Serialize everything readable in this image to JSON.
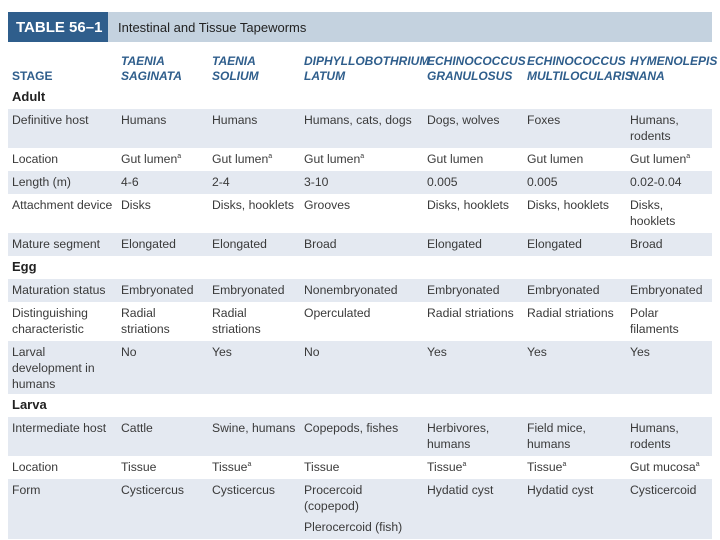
{
  "title": {
    "number": "TABLE 56–1",
    "text": "Intestinal and Tissue Tapeworms"
  },
  "columns": {
    "stage": "STAGE",
    "species": [
      [
        "TAENIA",
        "SAGINATA"
      ],
      [
        "TAENIA",
        "SOLIUM"
      ],
      [
        "DIPHYLLOBOTHRIUM",
        "LATUM"
      ],
      [
        "ECHINOCOCCUS",
        "GRANULOSUS"
      ],
      [
        "ECHINOCOCCUS",
        "MULTILOCULARIS"
      ],
      [
        "HYMENOLEPIS",
        "NANA"
      ]
    ]
  },
  "footnote_mark": "a",
  "sections": [
    {
      "name": "Adult",
      "rows": [
        {
          "label": "Definitive host",
          "cells": [
            "Humans",
            "Humans",
            "Humans, cats, dogs",
            "Dogs, wolves",
            "Foxes",
            "Humans, rodents"
          ]
        },
        {
          "label": "Location",
          "cells": [
            "Gut lumen",
            "Gut lumen",
            "Gut lumen",
            "Gut lumen",
            "Gut lumen",
            "Gut lumen"
          ]
        },
        {
          "label": "Length (m)",
          "cells": [
            "4-6",
            "2-4",
            "3-10",
            "0.005",
            "0.005",
            "0.02-0.04"
          ]
        },
        {
          "label": "Attachment device",
          "cells": [
            "Disks",
            "Disks, hooklets",
            "Grooves",
            "Disks, hooklets",
            "Disks, hooklets",
            "Disks, hooklets"
          ]
        },
        {
          "label": "Mature segment",
          "cells": [
            "Elongated",
            "Elongated",
            "Broad",
            "Elongated",
            "Elongated",
            "Broad"
          ]
        }
      ]
    },
    {
      "name": "Egg",
      "rows": [
        {
          "label": "Maturation status",
          "cells": [
            "Embryonated",
            "Embryonated",
            "Nonembryonated",
            "Embryonated",
            "Embryonated",
            "Embryonated"
          ]
        },
        {
          "label": "Distinguishing characteristic",
          "cells": [
            "Radial striations",
            "Radial striations",
            "Operculated",
            "Radial striations",
            "Radial striations",
            "Polar filaments"
          ]
        },
        {
          "label": "Larval development in humans",
          "cells": [
            "No",
            "Yes",
            "No",
            "Yes",
            "Yes",
            "Yes"
          ]
        }
      ]
    },
    {
      "name": "Larva",
      "rows": [
        {
          "label": "Intermediate host",
          "cells": [
            "Cattle",
            "Swine, humans",
            "Copepods, fishes",
            "Herbivores, humans",
            "Field mice, humans",
            "Humans, rodents"
          ]
        },
        {
          "label": "Location",
          "cells": [
            "Tissue",
            "Tissue",
            "Tissue",
            "Tissue",
            "Tissue",
            "Gut mucosa"
          ]
        },
        {
          "label": "Form",
          "cells": [
            "Cysticercus",
            "Cysticercus",
            "Procercoid (copepod)",
            "Hydatid cyst",
            "Hydatid cyst",
            "Cysticercoid"
          ]
        },
        {
          "label": "",
          "cells": [
            "",
            "",
            "Plerocercoid (fish)",
            "",
            "",
            ""
          ]
        }
      ]
    }
  ]
}
